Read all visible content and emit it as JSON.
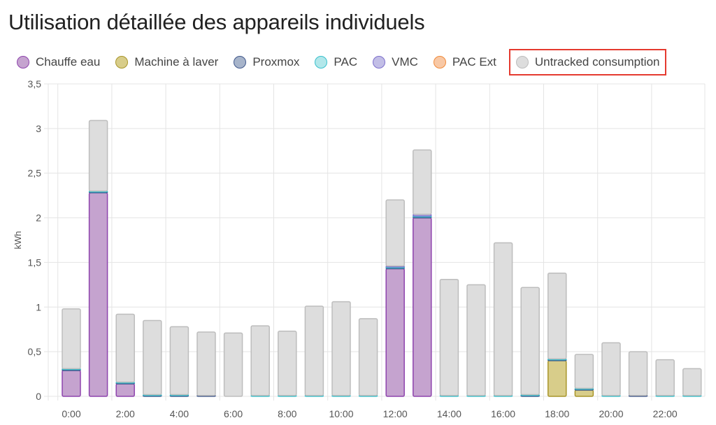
{
  "title": "Utilisation détaillée des appareils individuels",
  "legend": [
    {
      "name": "Chauffe eau",
      "fill": "#c5a3cf",
      "stroke": "#8e44ad",
      "highlight": false
    },
    {
      "name": "Machine à laver",
      "fill": "#d8cd8a",
      "stroke": "#a8952a",
      "highlight": false
    },
    {
      "name": "Proxmox",
      "fill": "#a7b4ca",
      "stroke": "#41588c",
      "highlight": false
    },
    {
      "name": "PAC",
      "fill": "#b2e7ea",
      "stroke": "#39c0cc",
      "highlight": false
    },
    {
      "name": "VMC",
      "fill": "#c2bee6",
      "stroke": "#7d6fcc",
      "highlight": false
    },
    {
      "name": "PAC Ext",
      "fill": "#f8c8a5",
      "stroke": "#f08a3a",
      "highlight": false
    },
    {
      "name": "Untracked consumption",
      "fill": "#dddddd",
      "stroke": "#bdbdbd",
      "highlight": true
    }
  ],
  "chart_data": {
    "type": "bar",
    "stacked": true,
    "ylabel": "kWh",
    "ylim": [
      0,
      3.5
    ],
    "yticks": [
      "0",
      "0,5",
      "1",
      "1,5",
      "2",
      "2,5",
      "3",
      "3,5"
    ],
    "xticks": [
      "0:00",
      "2:00",
      "4:00",
      "6:00",
      "8:00",
      "10:00",
      "12:00",
      "14:00",
      "16:00",
      "18:00",
      "20:00",
      "22:00"
    ],
    "categories": [
      "0:00",
      "1:00",
      "2:00",
      "3:00",
      "4:00",
      "5:00",
      "6:00",
      "7:00",
      "8:00",
      "9:00",
      "10:00",
      "11:00",
      "12:00",
      "13:00",
      "14:00",
      "15:00",
      "16:00",
      "17:00",
      "18:00",
      "19:00",
      "20:00",
      "21:00",
      "22:00",
      "23:00"
    ],
    "grid": true,
    "series": [
      {
        "name": "Chauffe eau",
        "values": [
          0.29,
          2.28,
          0.14,
          0,
          0,
          0,
          0,
          0,
          0,
          0,
          0,
          0,
          1.43,
          2.0,
          0,
          0,
          0,
          0,
          0,
          0,
          0,
          0,
          0,
          0
        ]
      },
      {
        "name": "Machine à laver",
        "values": [
          0,
          0,
          0,
          0,
          0,
          0,
          0,
          0,
          0,
          0,
          0,
          0,
          0,
          0,
          0,
          0,
          0,
          0,
          0.4,
          0.07,
          0,
          0,
          0,
          0
        ]
      },
      {
        "name": "Proxmox",
        "values": [
          0.01,
          0.01,
          0.01,
          0.01,
          0.01,
          0.01,
          0,
          0,
          0,
          0,
          0,
          0,
          0.01,
          0.01,
          0,
          0,
          0,
          0.01,
          0.01,
          0.01,
          0,
          0.01,
          0,
          0
        ]
      },
      {
        "name": "PAC",
        "values": [
          0.01,
          0.01,
          0.01,
          0.01,
          0.01,
          0,
          0,
          0.01,
          0.01,
          0.01,
          0.01,
          0.01,
          0.01,
          0.01,
          0.01,
          0.01,
          0.01,
          0.01,
          0.01,
          0.01,
          0.01,
          0,
          0.01,
          0.01
        ]
      },
      {
        "name": "VMC",
        "values": [
          0,
          0,
          0,
          0,
          0,
          0,
          0,
          0,
          0,
          0,
          0,
          0,
          0.01,
          0.02,
          0,
          0,
          0,
          0,
          0,
          0,
          0,
          0,
          0,
          0
        ]
      },
      {
        "name": "PAC Ext",
        "values": [
          0,
          0,
          0,
          0,
          0,
          0,
          0,
          0,
          0,
          0,
          0,
          0,
          0,
          0,
          0,
          0,
          0,
          0,
          0,
          0,
          0,
          0,
          0,
          0
        ]
      },
      {
        "name": "Untracked consumption",
        "values": [
          0.67,
          0.79,
          0.76,
          0.83,
          0.76,
          0.71,
          0.71,
          0.78,
          0.72,
          1.0,
          1.05,
          0.86,
          0.74,
          0.72,
          1.3,
          1.24,
          1.71,
          1.2,
          0.96,
          0.38,
          0.59,
          0.49,
          0.4,
          0.3
        ]
      }
    ]
  }
}
